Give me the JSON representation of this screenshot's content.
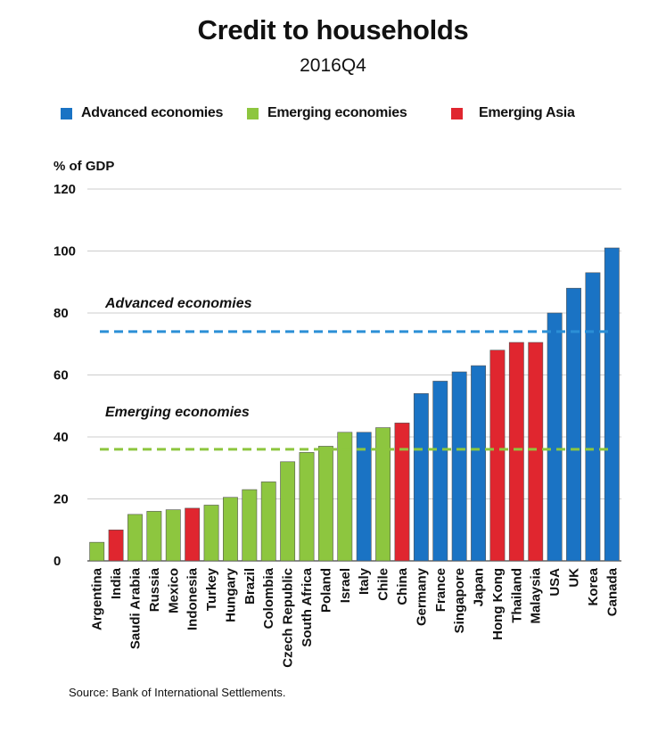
{
  "title": "Credit to households",
  "subtitle": "2016Q4",
  "unit_label": "% of GDP",
  "source": "Source: Bank of International Settlements.",
  "colors": {
    "advanced": "#1a73c4",
    "emerging": "#8dc63f",
    "asia": "#e0262f",
    "grid": "#cccccc",
    "advanced_line": "#2b8fd6",
    "emerging_line": "#8dc63f"
  },
  "legend": [
    {
      "label": "Advanced economies",
      "group": "advanced"
    },
    {
      "label": "Emerging economies",
      "group": "emerging"
    },
    {
      "label": "Emerging Asia",
      "group": "asia"
    }
  ],
  "chart_data": {
    "type": "bar",
    "title": "Credit to households",
    "subtitle": "2016Q4",
    "ylabel": "% of GDP",
    "ylim": [
      0,
      120
    ],
    "yticks": [
      0,
      20,
      40,
      60,
      80,
      100,
      120
    ],
    "grid": true,
    "legend_position": "top",
    "categories": [
      "Argentina",
      "India",
      "Saudi Arabia",
      "Russia",
      "Mexico",
      "Indonesia",
      "Turkey",
      "Hungary",
      "Brazil",
      "Colombia",
      "Czech Republic",
      "South Africa",
      "Poland",
      "Israel",
      "Italy",
      "Chile",
      "China",
      "Germany",
      "France",
      "Singapore",
      "Japan",
      "Hong Kong",
      "Thailand",
      "Malaysia",
      "USA",
      "UK",
      "Korea",
      "Canada"
    ],
    "values": [
      6,
      10,
      15,
      16,
      16.5,
      17,
      18,
      20.5,
      23,
      25.5,
      32,
      35,
      37,
      41.5,
      41.5,
      43,
      44.5,
      54,
      58,
      61,
      63,
      68,
      70.5,
      70.5,
      80,
      88,
      93,
      101
    ],
    "groups": [
      "emerging",
      "asia",
      "emerging",
      "emerging",
      "emerging",
      "asia",
      "emerging",
      "emerging",
      "emerging",
      "emerging",
      "emerging",
      "emerging",
      "emerging",
      "emerging",
      "advanced",
      "emerging",
      "asia",
      "advanced",
      "advanced",
      "advanced",
      "advanced",
      "asia",
      "asia",
      "asia",
      "advanced",
      "advanced",
      "advanced",
      "advanced"
    ],
    "reference_lines": [
      {
        "label": "Advanced economies",
        "value": 74,
        "group": "advanced"
      },
      {
        "label": "Emerging economies",
        "value": 36,
        "group": "emerging"
      }
    ]
  }
}
